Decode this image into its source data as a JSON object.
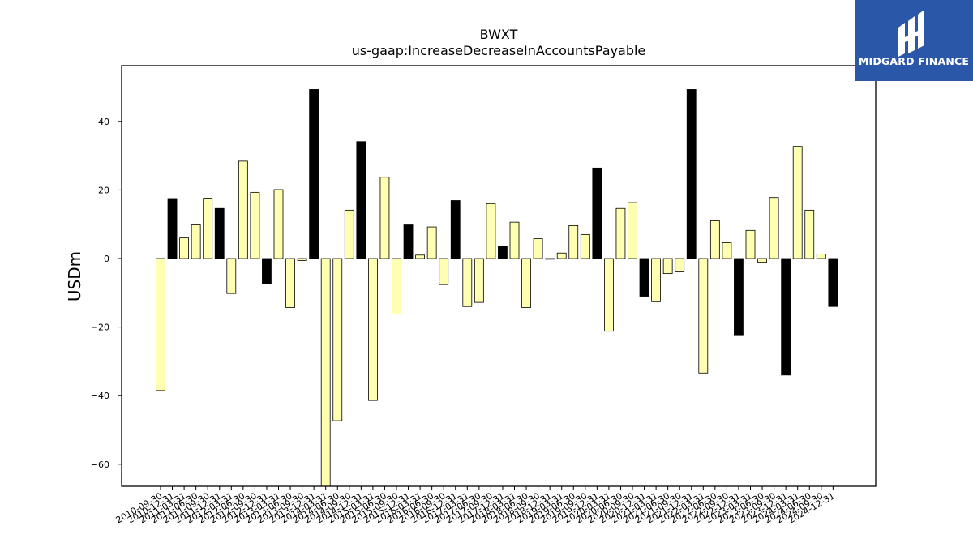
{
  "chart_data": {
    "type": "bar",
    "title": "BWXT",
    "subtitle": "us-gaap:IncreaseDecreaseInAccountsPayable",
    "xlabel": "",
    "ylabel": "USDm",
    "ylim": [
      -66.5,
      56
    ],
    "yticks": [
      -60,
      -40,
      -20,
      0,
      20,
      40
    ],
    "grid": false,
    "colors": {
      "quarter": "#ffffb2",
      "year_end": "#000000",
      "edge": "#000000"
    },
    "categories": [
      "2010-09-30",
      "2010-12-31",
      "2011-03-31",
      "2011-06-30",
      "2011-09-30",
      "2011-12-31",
      "2012-03-31",
      "2012-06-30",
      "2012-09-30",
      "2012-12-31",
      "2013-03-31",
      "2013-06-30",
      "2013-09-30",
      "2013-12-31",
      "2014-03-31",
      "2014-06-30",
      "2014-09-30",
      "2014-12-31",
      "2015-03-31",
      "2015-06-30",
      "2015-09-30",
      "2015-12-31",
      "2016-03-31",
      "2016-06-30",
      "2016-09-30",
      "2016-12-31",
      "2017-03-31",
      "2017-06-30",
      "2017-09-30",
      "2017-12-31",
      "2018-03-31",
      "2018-06-30",
      "2018-09-30",
      "2018-12-31",
      "2019-03-31",
      "2019-06-30",
      "2019-09-30",
      "2019-12-31",
      "2020-03-31",
      "2020-06-30",
      "2020-09-30",
      "2020-12-31",
      "2021-03-31",
      "2021-06-30",
      "2021-09-30",
      "2021-12-31",
      "2022-03-31",
      "2022-06-30",
      "2022-09-30",
      "2022-12-31",
      "2023-03-31",
      "2023-06-30",
      "2023-09-30",
      "2023-12-31",
      "2024-03-31",
      "2024-06-30",
      "2024-09-30",
      "2024-12-31"
    ],
    "values": [
      -38.5,
      17.5,
      6.0,
      9.8,
      17.6,
      14.6,
      -10.2,
      28.4,
      19.3,
      -7.3,
      20.1,
      -14.3,
      -0.6,
      49.3,
      -66.5,
      -47.3,
      14.1,
      34.1,
      -41.4,
      23.7,
      -16.2,
      9.8,
      1.0,
      9.2,
      -7.6,
      16.9,
      -14.0,
      -12.8,
      16.0,
      3.5,
      10.6,
      -14.3,
      5.8,
      -0.2,
      1.6,
      9.6,
      7.0,
      26.4,
      -21.2,
      14.6,
      16.3,
      -11.0,
      -12.6,
      -4.4,
      -3.9,
      49.3,
      -33.4,
      11.0,
      4.6,
      -22.5,
      8.2,
      -1.1,
      17.8,
      -34.0,
      32.7,
      14.1,
      1.3,
      -14.0
    ],
    "year_end": [
      false,
      true,
      false,
      false,
      false,
      true,
      false,
      false,
      false,
      true,
      false,
      false,
      false,
      true,
      false,
      false,
      false,
      true,
      false,
      false,
      false,
      true,
      false,
      false,
      false,
      true,
      false,
      false,
      false,
      true,
      false,
      false,
      false,
      true,
      false,
      false,
      false,
      true,
      false,
      false,
      false,
      true,
      false,
      false,
      false,
      true,
      false,
      false,
      false,
      true,
      false,
      false,
      false,
      true,
      false,
      false,
      false,
      true
    ]
  },
  "logo": {
    "name": "MIDGARD FINANCE"
  }
}
